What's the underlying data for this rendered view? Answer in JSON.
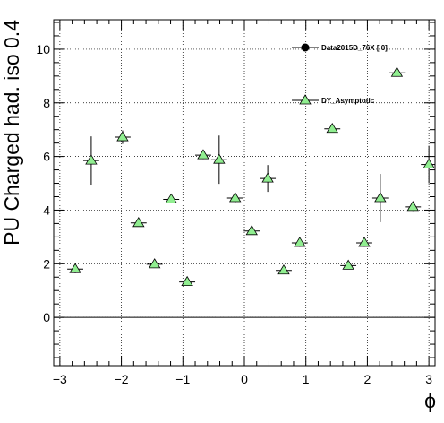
{
  "chart_data": {
    "type": "scatter",
    "xlabel": "ϕ",
    "ylabel": "PU Charged had. iso 0.4",
    "xlim": [
      -3.1,
      3.1
    ],
    "ylim": [
      -1.8,
      11.1
    ],
    "x_ticks": [
      -3,
      -2,
      -1,
      0,
      1,
      2,
      3
    ],
    "x_tick_labels": [
      "−3",
      "−2",
      "−1",
      "0",
      "1",
      "2",
      "3"
    ],
    "y_ticks": [
      0,
      2,
      4,
      6,
      8,
      10
    ],
    "y_tick_labels": [
      "0",
      "2",
      "4",
      "6",
      "8",
      "10"
    ],
    "grid": true,
    "legend_position": "top-right",
    "legend": [
      {
        "label": "Data2015D_76X [        0]",
        "marker": "circle",
        "color": "#000000"
      },
      {
        "label": "DY_Asymptotic",
        "marker": "triangle",
        "color": "#90ee90"
      }
    ],
    "series": [
      {
        "name": "DY_Asymptotic",
        "marker": "triangle",
        "color": "#90ee90",
        "x_half_width": 0.13,
        "points": [
          {
            "x": -2.75,
            "y": 1.8,
            "err": 0.15
          },
          {
            "x": -2.49,
            "y": 5.85,
            "err": 0.9
          },
          {
            "x": -1.98,
            "y": 6.72,
            "err": 0.25
          },
          {
            "x": -1.72,
            "y": 3.52,
            "err": 0.1
          },
          {
            "x": -1.46,
            "y": 1.98,
            "err": 0.1
          },
          {
            "x": -1.19,
            "y": 4.4,
            "err": 0.15
          },
          {
            "x": -0.93,
            "y": 1.32,
            "err": 0.1
          },
          {
            "x": -0.67,
            "y": 6.05,
            "err": 0.15
          },
          {
            "x": -0.41,
            "y": 5.88,
            "err": 0.9
          },
          {
            "x": -0.15,
            "y": 4.45,
            "err": 0.2
          },
          {
            "x": 0.12,
            "y": 3.22,
            "err": 0.1
          },
          {
            "x": 0.38,
            "y": 5.18,
            "err": 0.5
          },
          {
            "x": 0.64,
            "y": 1.75,
            "err": 0.1
          },
          {
            "x": 0.9,
            "y": 2.78,
            "err": 0.15
          },
          {
            "x": 1.43,
            "y": 7.03,
            "err": 0.1
          },
          {
            "x": 1.69,
            "y": 1.93,
            "err": 0.1
          },
          {
            "x": 1.95,
            "y": 2.78,
            "err": 0.15
          },
          {
            "x": 2.21,
            "y": 4.45,
            "err": 0.9
          },
          {
            "x": 2.48,
            "y": 9.12,
            "err": 0.15
          },
          {
            "x": 2.74,
            "y": 4.12,
            "err": 0.15
          },
          {
            "x": 3.0,
            "y": 5.7,
            "err": 0.7
          }
        ]
      }
    ]
  }
}
